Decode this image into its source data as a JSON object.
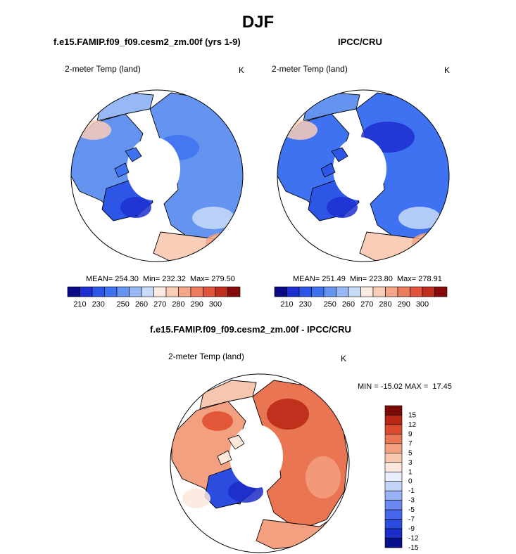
{
  "title": "DJF",
  "colors": {
    "abs_scale": [
      "#0a0a86",
      "#1d2fd0",
      "#2d56e6",
      "#3f72f0",
      "#6494f0",
      "#97b8f4",
      "#c8dcfa",
      "#fbeae2",
      "#f9cdb8",
      "#f4a688",
      "#ec7c5c",
      "#e1533a",
      "#c02f1e",
      "#880b0b"
    ],
    "diff_scale": [
      "#08108e",
      "#1b2cc8",
      "#2c4ce0",
      "#4466ec",
      "#6a88f0",
      "#97b2f4",
      "#c4d6f8",
      "#e8eefc",
      "#fbe7dc",
      "#f7c6ae",
      "#f2a080",
      "#ea7552",
      "#de4a2c",
      "#b82614",
      "#7c0a08"
    ],
    "coast": "#000000"
  },
  "panels": {
    "left": {
      "heading": "f.e15.FAMIP.f09_f09.cesm2_zm.00f (yrs 1-9)",
      "variable": "2-meter Temp (land)",
      "unit": "K",
      "stats": "MEAN= 254.30  Min= 232.32  Max= 279.50"
    },
    "right": {
      "heading": "IPCC/CRU",
      "variable": "2-meter Temp (land)",
      "unit": "K",
      "stats": "MEAN= 251.49  Min= 223.80  Max= 278.91"
    },
    "diff": {
      "heading": "f.e15.FAMIP.f09_f09.cesm2_zm.00f - IPCC/CRU",
      "variable": "2-meter Temp (land)",
      "unit": "K",
      "stats": "MIN = -15.02 MAX =  17.45"
    }
  },
  "chart_data": [
    {
      "type": "heatmap",
      "projection": "north-polar-stereographic",
      "title": "f.e15.FAMIP.f09_f09.cesm2_zm.00f (yrs 1-9)",
      "variable": "2-meter Temp (land)",
      "unit": "K",
      "mean": 254.3,
      "min": 232.32,
      "max": 279.5,
      "colorbar_ticks": [
        "210",
        "230",
        "250",
        "260",
        "270",
        "280",
        "290",
        "300"
      ]
    },
    {
      "type": "heatmap",
      "projection": "north-polar-stereographic",
      "title": "IPCC/CRU",
      "variable": "2-meter Temp (land)",
      "unit": "K",
      "mean": 251.49,
      "min": 223.8,
      "max": 278.91,
      "colorbar_ticks": [
        "210",
        "230",
        "250",
        "260",
        "270",
        "280",
        "290",
        "300"
      ]
    },
    {
      "type": "heatmap",
      "projection": "north-polar-stereographic",
      "title": "f.e15.FAMIP.f09_f09.cesm2_zm.00f - IPCC/CRU",
      "variable": "2-meter Temp (land)",
      "unit": "K",
      "min": -15.02,
      "max": 17.45,
      "colorbar_ticks": [
        "15",
        "12",
        "9",
        "7",
        "5",
        "3",
        "1",
        "0",
        "-1",
        "-3",
        "-5",
        "-7",
        "-9",
        "-12",
        "-15"
      ]
    }
  ]
}
